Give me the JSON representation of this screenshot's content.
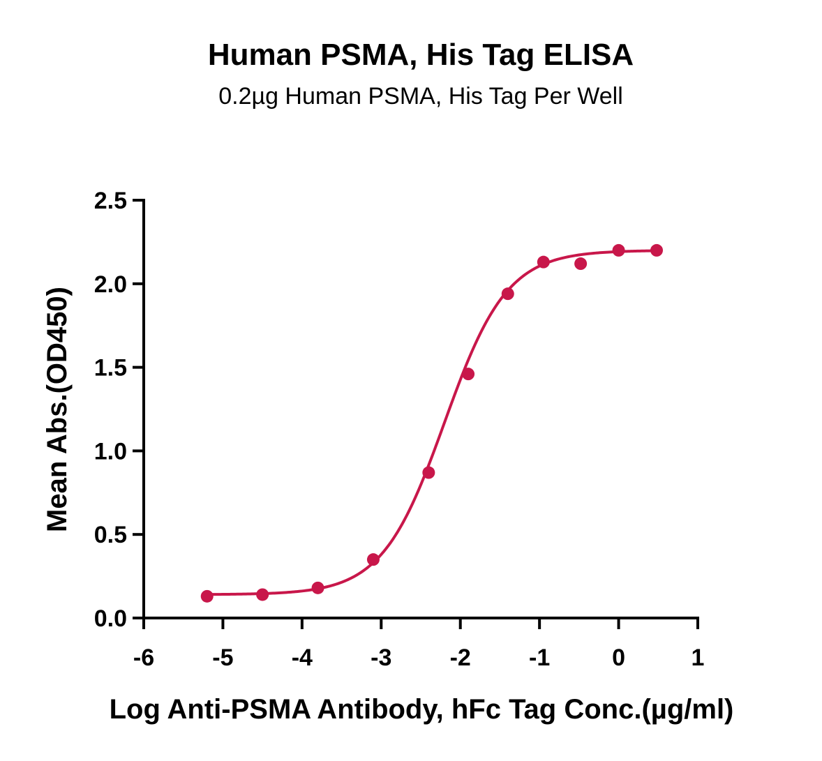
{
  "chart_data": {
    "type": "scatter",
    "title": "Human PSMA, His Tag ELISA",
    "subtitle": "0.2µg Human PSMA, His Tag Per Well",
    "xlabel": "Log Anti-PSMA Antibody, hFc Tag Conc.(µg/ml)",
    "ylabel": "Mean Abs.(OD450)",
    "xlim": [
      -6,
      1
    ],
    "ylim": [
      0,
      2.5
    ],
    "x_ticks": [
      "-6",
      "-5",
      "-4",
      "-3",
      "-2",
      "-1",
      "0",
      "1"
    ],
    "y_ticks": [
      "0.0",
      "0.5",
      "1.0",
      "1.5",
      "2.0",
      "2.5"
    ],
    "grid": false,
    "color": "#c8174a",
    "series": [
      {
        "points": [
          {
            "x": -5.2,
            "y": 0.13
          },
          {
            "x": -4.5,
            "y": 0.14
          },
          {
            "x": -3.8,
            "y": 0.18
          },
          {
            "x": -3.1,
            "y": 0.35
          },
          {
            "x": -2.4,
            "y": 0.87
          },
          {
            "x": -1.9,
            "y": 1.46
          },
          {
            "x": -1.4,
            "y": 1.94
          },
          {
            "x": -0.95,
            "y": 2.13
          },
          {
            "x": -0.48,
            "y": 2.12
          },
          {
            "x": 0.0,
            "y": 2.2
          },
          {
            "x": 0.48,
            "y": 2.2
          }
        ],
        "fit": {
          "model": "4PL",
          "bottom": 0.14,
          "top": 2.2,
          "logEC50": -2.2,
          "hill": 1.1
        }
      }
    ]
  }
}
